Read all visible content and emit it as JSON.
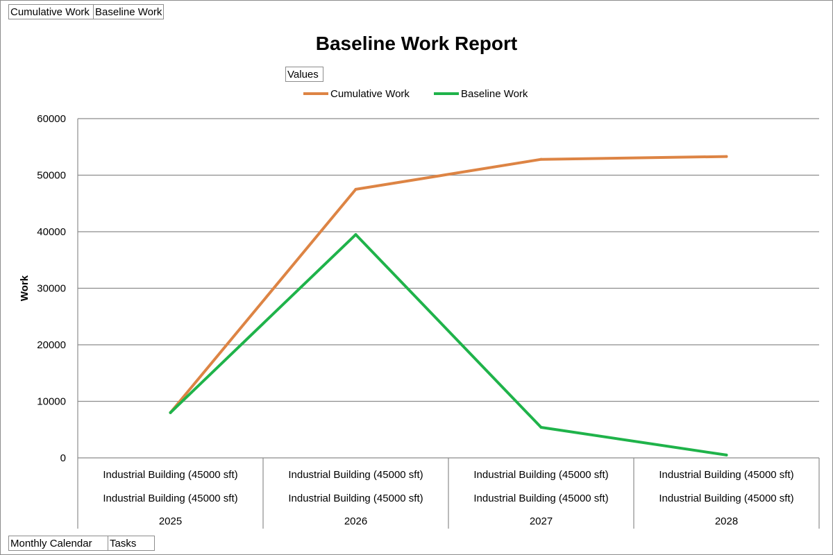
{
  "top_field_buttons": [
    {
      "label": "Cumulative Work"
    },
    {
      "label": "Baseline Work"
    }
  ],
  "bottom_field_buttons": [
    {
      "label": "Monthly Calendar"
    },
    {
      "label": "Tasks"
    }
  ],
  "legend_field_button": {
    "label": "Values"
  },
  "chart_data": {
    "type": "line",
    "title": "Baseline Work Report",
    "ylabel": "Work",
    "xlabel": "",
    "ylim": [
      0,
      60000
    ],
    "yticks": [
      0,
      10000,
      20000,
      30000,
      40000,
      50000,
      60000
    ],
    "grid": true,
    "legend_position": "top",
    "categories": [
      {
        "labels": [
          "Industrial Building (45000 sft)",
          "Industrial Building (45000 sft)"
        ],
        "group": "2025"
      },
      {
        "labels": [
          "Industrial Building (45000 sft)",
          "Industrial Building (45000 sft)"
        ],
        "group": "2026"
      },
      {
        "labels": [
          "Industrial Building (45000 sft)",
          "Industrial Building (45000 sft)"
        ],
        "group": "2027"
      },
      {
        "labels": [
          "Industrial Building (45000 sft)",
          "Industrial Building (45000 sft)"
        ],
        "group": "2028"
      }
    ],
    "series": [
      {
        "name": "Cumulative Work",
        "color": "#dd8444",
        "values": [
          8000,
          47500,
          52800,
          53300
        ]
      },
      {
        "name": "Baseline Work",
        "color": "#1fb34a",
        "values": [
          8000,
          39500,
          5400,
          500
        ]
      }
    ]
  }
}
